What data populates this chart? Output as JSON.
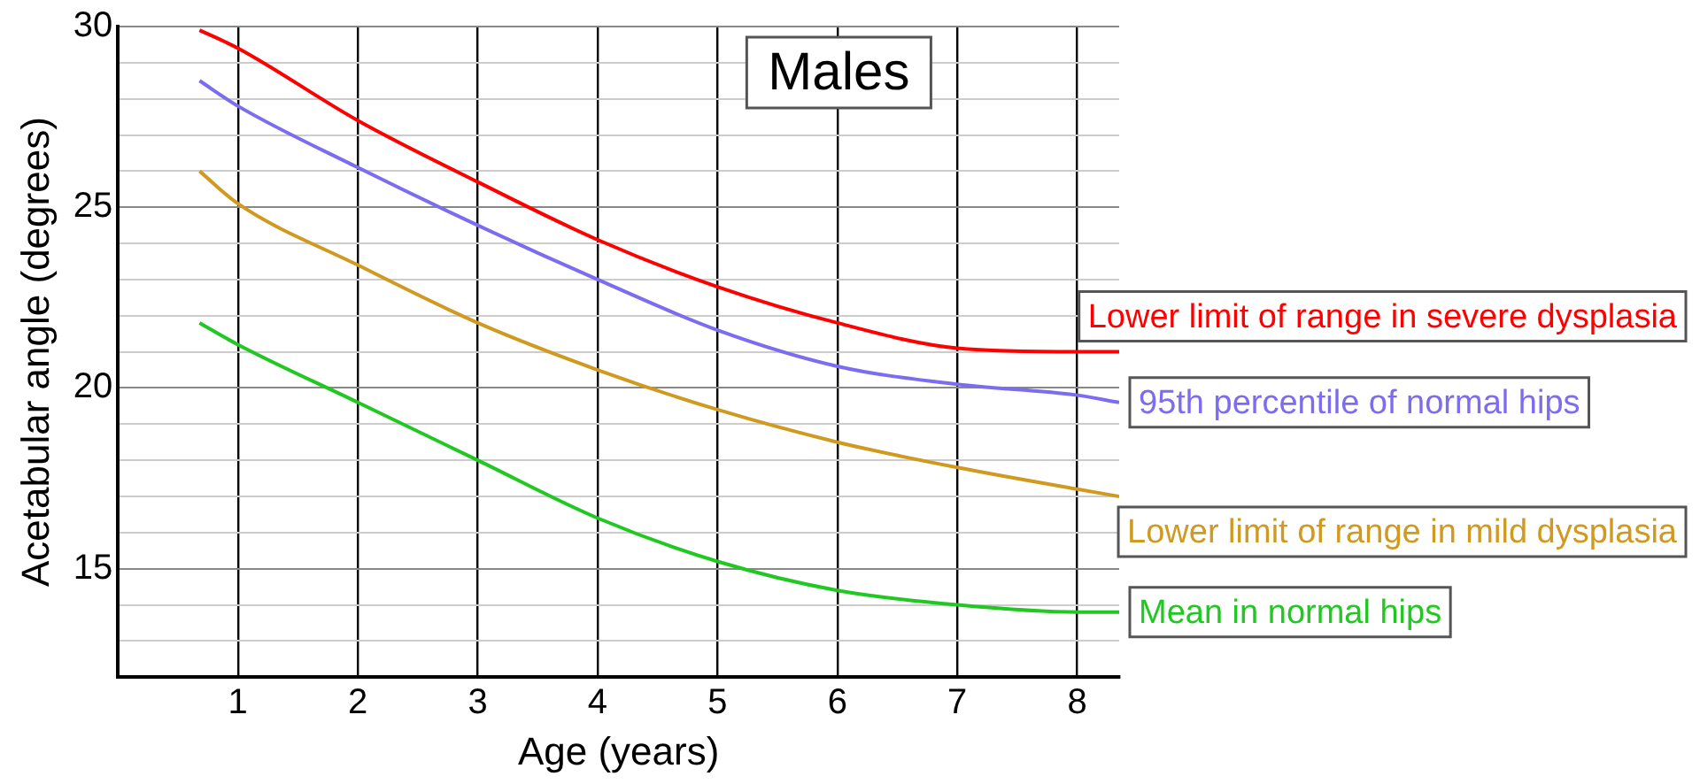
{
  "chart_data": {
    "type": "line",
    "title": "Males",
    "xlabel": "Age (years)",
    "ylabel": "Acetabular angle (degrees)",
    "xlim": [
      0,
      8.35
    ],
    "xticks": [
      1,
      2,
      3,
      4,
      5,
      6,
      7,
      8
    ],
    "ylim": [
      12,
      30
    ],
    "yticks": [
      {
        "value": 12,
        "label": null
      },
      {
        "value": 13,
        "label": null
      },
      {
        "value": 14,
        "label": null
      },
      15,
      {
        "value": 16,
        "label": null
      },
      {
        "value": 17,
        "label": null
      },
      {
        "value": 18,
        "label": null
      },
      {
        "value": 19,
        "label": null
      },
      20,
      {
        "value": 21,
        "label": null
      },
      {
        "value": 22,
        "label": null
      },
      {
        "value": 23,
        "label": null
      },
      {
        "value": 24,
        "label": null
      },
      25,
      {
        "value": 26,
        "label": null
      },
      {
        "value": 27,
        "label": null
      },
      {
        "value": 28,
        "label": null
      },
      {
        "value": 29,
        "label": null
      },
      30
    ],
    "grid": true,
    "legend": false,
    "marker": "none",
    "line_style": "solid",
    "x": [
      0.68,
      1,
      2,
      3,
      4,
      5,
      6,
      7,
      8,
      8.35
    ],
    "series": [
      {
        "name": "Lower limit of range in severe dysplasia",
        "color": "#ff0000",
        "values": [
          29.9,
          29.4,
          27.4,
          25.7,
          24.1,
          22.8,
          21.8,
          21.1,
          21.0,
          21.0
        ]
      },
      {
        "name": "95th percentile of normal hips",
        "color": "#7b6cf0",
        "values": [
          28.5,
          27.8,
          26.1,
          24.5,
          23.0,
          21.6,
          20.6,
          20.1,
          19.8,
          19.6
        ]
      },
      {
        "name": "Lower limit of range in mild dysplasia",
        "color": "#d09a20",
        "values": [
          26.0,
          25.1,
          23.4,
          21.8,
          20.5,
          19.4,
          18.5,
          17.8,
          17.2,
          17.0
        ]
      },
      {
        "name": "Mean in normal hips",
        "color": "#22c822",
        "values": [
          21.8,
          21.2,
          19.6,
          18.0,
          16.4,
          15.2,
          14.4,
          14.0,
          13.8,
          13.8
        ]
      }
    ]
  }
}
